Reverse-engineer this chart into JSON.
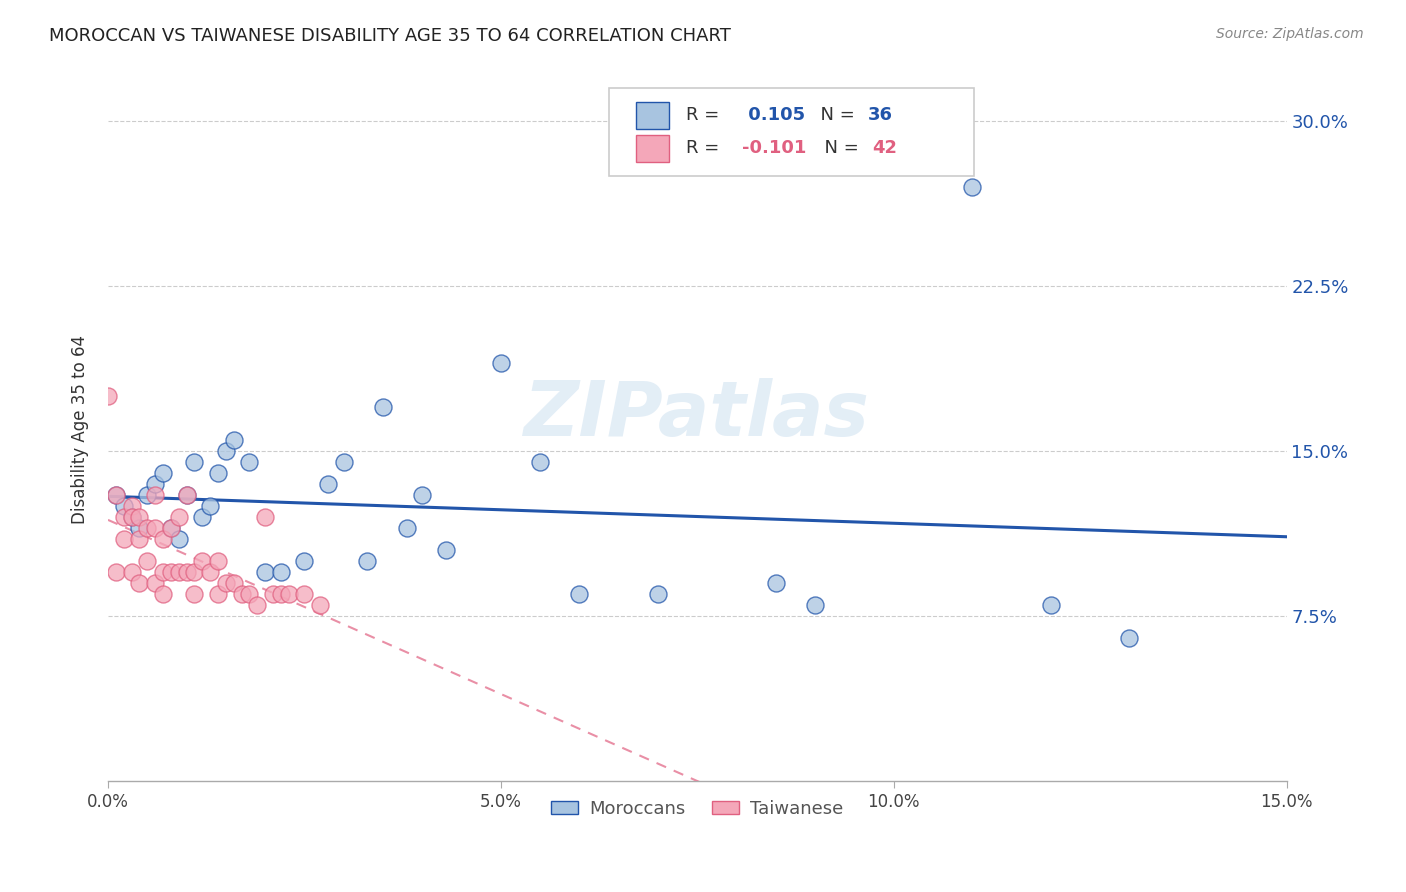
{
  "title": "MOROCCAN VS TAIWANESE DISABILITY AGE 35 TO 64 CORRELATION CHART",
  "source": "Source: ZipAtlas.com",
  "ylabel": "Disability Age 35 to 64",
  "xlim": [
    0.0,
    0.15
  ],
  "ylim": [
    0.0,
    0.32
  ],
  "xtick_labels": [
    "0.0%",
    "5.0%",
    "10.0%",
    "15.0%"
  ],
  "xtick_values": [
    0.0,
    0.05,
    0.1,
    0.15
  ],
  "ytick_labels": [
    "7.5%",
    "15.0%",
    "22.5%",
    "30.0%"
  ],
  "ytick_values": [
    0.075,
    0.15,
    0.225,
    0.3
  ],
  "moroccan_R": 0.105,
  "moroccan_N": 36,
  "taiwanese_R": -0.101,
  "taiwanese_N": 42,
  "moroccan_color": "#a8c4e0",
  "taiwanese_color": "#f4a7b9",
  "moroccan_line_color": "#2255aa",
  "taiwanese_line_color": "#e06080",
  "background_color": "#ffffff",
  "watermark_text": "ZIPatlas",
  "moroccan_x": [
    0.001,
    0.002,
    0.003,
    0.004,
    0.005,
    0.006,
    0.007,
    0.008,
    0.009,
    0.01,
    0.011,
    0.012,
    0.013,
    0.014,
    0.015,
    0.016,
    0.018,
    0.02,
    0.022,
    0.025,
    0.028,
    0.03,
    0.033,
    0.035,
    0.038,
    0.04,
    0.043,
    0.05,
    0.055,
    0.06,
    0.07,
    0.085,
    0.09,
    0.11,
    0.12,
    0.13
  ],
  "moroccan_y": [
    0.13,
    0.125,
    0.12,
    0.115,
    0.13,
    0.135,
    0.14,
    0.115,
    0.11,
    0.13,
    0.145,
    0.12,
    0.125,
    0.14,
    0.15,
    0.155,
    0.145,
    0.095,
    0.095,
    0.1,
    0.135,
    0.145,
    0.1,
    0.17,
    0.115,
    0.13,
    0.105,
    0.19,
    0.145,
    0.085,
    0.085,
    0.09,
    0.08,
    0.27,
    0.08,
    0.065
  ],
  "taiwanese_x": [
    0.0,
    0.001,
    0.001,
    0.002,
    0.002,
    0.003,
    0.003,
    0.003,
    0.004,
    0.004,
    0.004,
    0.005,
    0.005,
    0.006,
    0.006,
    0.006,
    0.007,
    0.007,
    0.007,
    0.008,
    0.008,
    0.009,
    0.009,
    0.01,
    0.01,
    0.011,
    0.011,
    0.012,
    0.013,
    0.014,
    0.014,
    0.015,
    0.016,
    0.017,
    0.018,
    0.019,
    0.02,
    0.021,
    0.022,
    0.023,
    0.025,
    0.027
  ],
  "taiwanese_y": [
    0.175,
    0.13,
    0.095,
    0.12,
    0.11,
    0.125,
    0.12,
    0.095,
    0.12,
    0.11,
    0.09,
    0.115,
    0.1,
    0.13,
    0.115,
    0.09,
    0.11,
    0.095,
    0.085,
    0.115,
    0.095,
    0.12,
    0.095,
    0.13,
    0.095,
    0.095,
    0.085,
    0.1,
    0.095,
    0.1,
    0.085,
    0.09,
    0.09,
    0.085,
    0.085,
    0.08,
    0.12,
    0.085,
    0.085,
    0.085,
    0.085,
    0.08
  ]
}
